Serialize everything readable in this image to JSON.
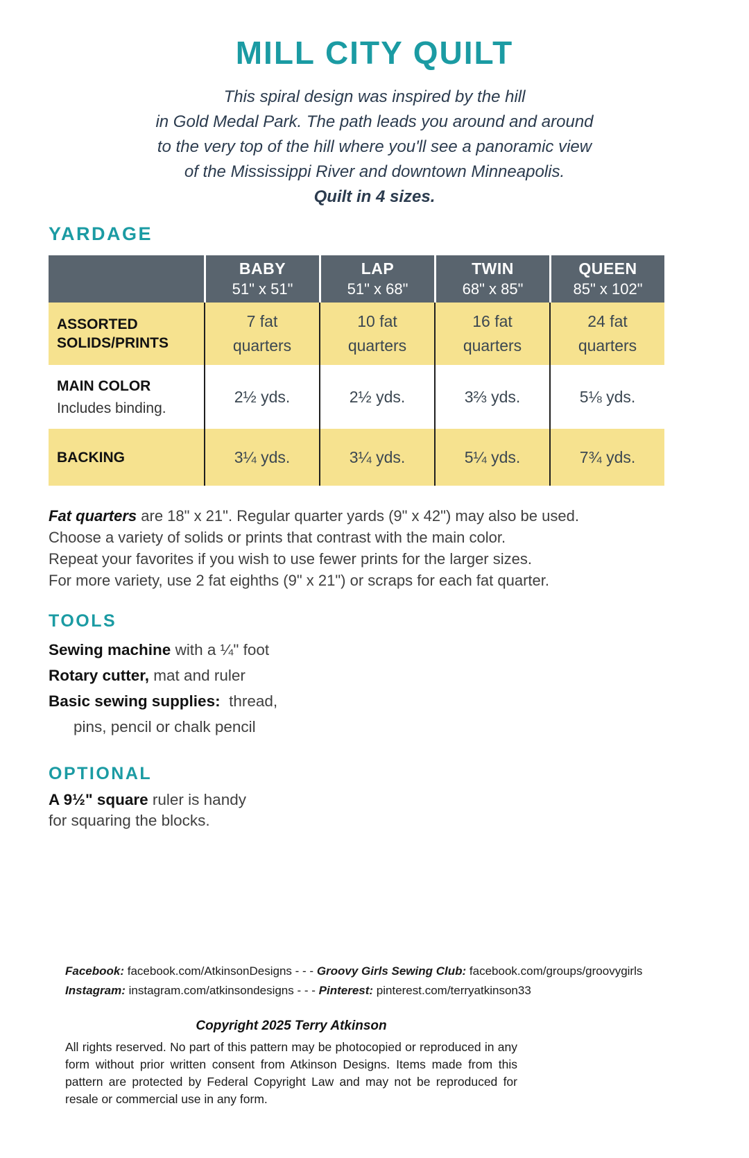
{
  "colors": {
    "teal_accent": "#1b9ba3",
    "table_header_bg": "#59646e",
    "table_header_text": "#ffffff",
    "row_shaded_bg": "#f6e28f",
    "row_plain_bg": "#ffffff",
    "value_text": "#3b4751",
    "label_text": "#121212",
    "body_text": "#3f3f3f",
    "intro_text": "#2b3b4e"
  },
  "header": {
    "title": "MILL CITY QUILT",
    "description_lines": [
      "This spiral design was inspired by the hill",
      "in Gold Medal Park. The path leads you around and around",
      "to the very top of the hill where you'll see a panoramic view",
      "of the Mississippi River and downtown Minneapolis."
    ],
    "emphasis": "Quilt in 4 sizes."
  },
  "yardage": {
    "heading": "YARDAGE",
    "table": {
      "columns": [
        {
          "name": "BABY",
          "size": "51\" x 51\""
        },
        {
          "name": "LAP",
          "size": "51\" x 68\""
        },
        {
          "name": "TWIN",
          "size": "68\" x 85\""
        },
        {
          "name": "QUEEN",
          "size": "85\" x 102\""
        }
      ],
      "rows": [
        {
          "label": "ASSORTED\nSOLIDS/PRINTS",
          "sublabel": "",
          "values": [
            "7 fat\nquarters",
            "10 fat\nquarters",
            "16 fat\nquarters",
            "24 fat\nquarters"
          ]
        },
        {
          "label": "MAIN COLOR",
          "sublabel": "Includes binding.",
          "values": [
            "2½ yds.",
            "2½ yds.",
            "3⅔ yds.",
            "5⅛ yds."
          ]
        },
        {
          "label": "BACKING",
          "sublabel": "",
          "values": [
            "3¼ yds.",
            "3¼ yds.",
            "5¼ yds.",
            "7¾ yds."
          ]
        }
      ]
    }
  },
  "note": {
    "lead": "Fat quarters",
    "line1_rest": " are 18\" x 21\". Regular quarter yards (9\" x 42\") may also be used.",
    "line2": "Choose a variety of solids or prints that contrast with the main color.",
    "line3": "Repeat your favorites if you wish to use fewer prints for the larger sizes.",
    "line4": "For more variety, use 2 fat eighths (9\" x 21\") or scraps for each fat quarter."
  },
  "tools": {
    "heading": "TOOLS",
    "item1_bold": "Sewing machine",
    "item1_rest": " with a ¼\" foot",
    "item2_bold": "Rotary cutter,",
    "item2_rest": " mat and ruler",
    "item3_bold": "Basic sewing supplies:",
    "item3_rest": "  thread,",
    "item3_cont": "pins, pencil or chalk pencil"
  },
  "optional": {
    "heading": "OPTIONAL",
    "bold": "A 9½\" square",
    "rest": " ruler is handy",
    "line2": "for squaring the blocks."
  },
  "social": {
    "fb_label": "Facebook:",
    "fb_text": " facebook.com/AtkinsonDesigns - - - ",
    "club_label": "Groovy Girls Sewing Club:",
    "club_text": " facebook.com/groups/groovygirls",
    "ig_label": "Instagram:",
    "ig_text": " instagram.com/atkinsondesigns - - - ",
    "pin_label": "Pinterest:",
    "pin_text": " pinterest.com/terryatkinson33"
  },
  "copyright": {
    "title": "Copyright 2025 Terry Atkinson",
    "body": "All rights reserved. No part of this pattern may be photocopied or reproduced in any form without prior written consent from Atkinson Designs. Items made from this pattern are protected by Federal Copyright Law and may not be reproduced for resale or commercial use in any form."
  }
}
